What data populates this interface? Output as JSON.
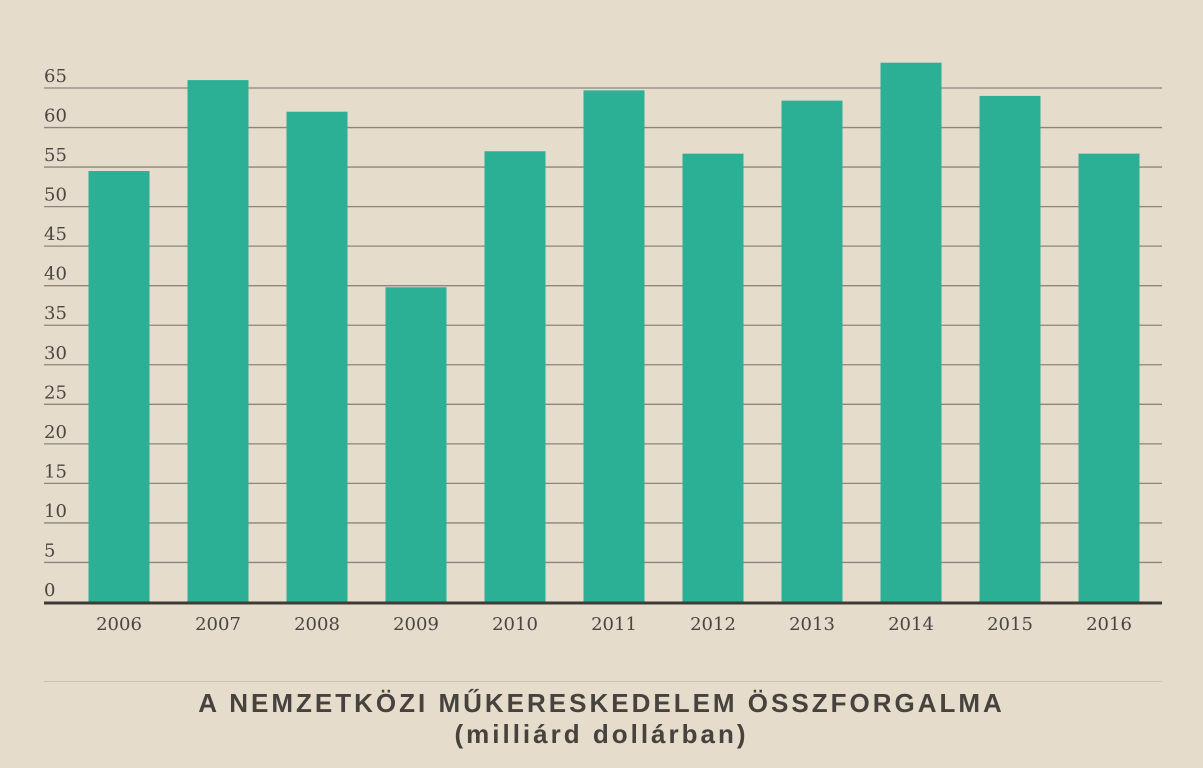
{
  "chart_data": {
    "type": "bar",
    "title": "A NEMZETKÖZI MŰKERESKEDELEM ÖSSZFORGALMA",
    "subtitle": "(milliárd dollárban)",
    "categories": [
      "2006",
      "2007",
      "2008",
      "2009",
      "2010",
      "2011",
      "2012",
      "2013",
      "2014",
      "2015",
      "2016"
    ],
    "values": [
      54.5,
      66.0,
      62.0,
      39.8,
      57.0,
      64.7,
      56.7,
      63.4,
      68.2,
      64.0,
      56.7
    ],
    "yticks": [
      "0",
      "5",
      "10",
      "15",
      "20",
      "25",
      "30",
      "35",
      "40",
      "45",
      "50",
      "55",
      "60",
      "65"
    ],
    "ylim": [
      0,
      65
    ],
    "bar_color": "#2bb096",
    "grid": true
  }
}
